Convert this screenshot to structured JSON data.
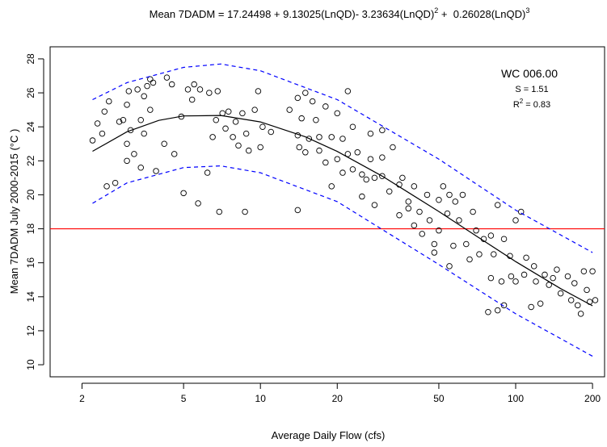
{
  "chart_data": {
    "type": "scatter",
    "title": [
      "Mean 7DADM = 17.24498 + 9.13025(LnQD)- 3.23634(LnQD)",
      "2",
      " +  0.26028(LnQD)",
      "3"
    ],
    "x_label": "Average Daily Flow (cfs)",
    "y_label": "Mean 7DADM July 2000-2015 (°C )",
    "annotations": {
      "site": "WC 006.00",
      "s": "S = 1.51",
      "r2": [
        "R",
        "2",
        " = 0.83"
      ]
    },
    "x_log": true,
    "xlim": [
      1.5,
      223
    ],
    "ylim": [
      9.29,
      28.71
    ],
    "xticks": [
      2,
      5,
      10,
      20,
      50,
      100,
      200
    ],
    "yticks": [
      10,
      12,
      14,
      16,
      18,
      20,
      22,
      24,
      26,
      28
    ],
    "hline": {
      "value": 18,
      "color": "#ff0000"
    },
    "series": [
      {
        "kind": "points",
        "color": "#000000",
        "x": [
          2.2,
          2.3,
          2.4,
          2.45,
          2.5,
          2.55,
          2.7,
          2.8,
          2.9,
          3.0,
          3.0,
          3.0,
          3.05,
          3.1,
          3.2,
          3.3,
          3.4,
          3.4,
          3.5,
          3.5,
          3.6,
          3.7,
          3.7,
          3.8,
          3.9,
          4.2,
          4.3,
          4.5,
          4.6,
          4.9,
          5.0,
          5.2,
          5.4,
          5.5,
          5.7,
          5.8,
          6.2,
          6.3,
          6.5,
          6.7,
          6.8,
          6.9,
          7.1,
          7.3,
          7.5,
          7.8,
          8.0,
          8.2,
          8.5,
          8.7,
          8.8,
          9.0,
          9.5,
          9.8,
          10.0,
          10.2,
          11.0,
          13,
          14,
          14,
          14,
          14.2,
          14.5,
          15,
          15,
          15.5,
          16,
          16.5,
          17,
          17,
          18,
          18,
          19,
          19,
          20,
          20,
          21,
          21,
          22,
          22,
          23,
          23,
          24,
          25,
          25,
          26,
          27,
          27,
          28,
          28,
          30,
          30,
          30,
          32,
          33,
          35,
          35,
          36,
          38,
          38,
          40,
          40,
          42,
          43,
          45,
          46,
          48,
          48,
          50,
          50,
          52,
          54,
          55,
          55,
          57,
          58,
          60,
          62,
          64,
          66,
          68,
          70,
          72,
          75,
          78,
          80,
          80,
          82,
          85,
          85,
          88,
          90,
          90,
          95,
          96,
          100,
          100,
          105,
          108,
          110,
          115,
          118,
          120,
          125,
          130,
          135,
          140,
          145,
          150,
          160,
          165,
          170,
          175,
          180,
          185,
          190,
          195,
          200,
          205
        ],
        "values": [
          23.2,
          24.2,
          23.6,
          24.9,
          20.5,
          25.5,
          20.7,
          24.3,
          24.4,
          22.0,
          23.0,
          25.3,
          26.1,
          23.8,
          22.4,
          26.2,
          21.6,
          24.4,
          23.6,
          25.8,
          26.4,
          26.8,
          25.0,
          26.6,
          21.4,
          23.0,
          26.9,
          26.5,
          22.4,
          24.6,
          20.1,
          26.2,
          25.6,
          26.5,
          19.5,
          26.2,
          21.3,
          26.0,
          23.4,
          24.4,
          26.1,
          19.0,
          24.8,
          23.9,
          24.9,
          23.4,
          24.3,
          22.9,
          24.8,
          19.0,
          23.6,
          22.6,
          25.0,
          26.1,
          22.8,
          24.0,
          23.7,
          25.0,
          19.1,
          25.7,
          23.5,
          22.8,
          24.5,
          26.0,
          22.5,
          23.3,
          25.5,
          24.4,
          23.4,
          22.6,
          25.2,
          21.9,
          23.4,
          20.5,
          22.1,
          24.8,
          21.3,
          23.3,
          22.4,
          26.1,
          21.5,
          24.0,
          22.5,
          19.9,
          21.2,
          20.9,
          22.1,
          23.6,
          21.0,
          19.4,
          22.2,
          21.1,
          23.8,
          20.2,
          22.8,
          18.8,
          20.6,
          21.0,
          19.6,
          19.2,
          20.5,
          18.2,
          19.0,
          17.7,
          20.0,
          18.5,
          17.1,
          16.6,
          17.9,
          19.7,
          20.5,
          18.9,
          20.0,
          15.8,
          17.0,
          19.6,
          18.5,
          20.0,
          17.1,
          16.2,
          19.0,
          17.9,
          16.5,
          17.4,
          13.1,
          15.1,
          17.6,
          16.5,
          13.2,
          19.4,
          14.9,
          17.4,
          13.5,
          16.4,
          15.2,
          18.5,
          14.9,
          19.0,
          15.3,
          16.3,
          13.4,
          15.8,
          14.9,
          13.6,
          15.3,
          14.7,
          15.1,
          15.6,
          14.2,
          15.2,
          13.8,
          14.8,
          13.5,
          13.0,
          15.5,
          14.4,
          13.7,
          15.5,
          13.8
        ]
      },
      {
        "kind": "line",
        "color": "#000000",
        "x": [
          2.2,
          3,
          4,
          5,
          7,
          10,
          15,
          20,
          30,
          50,
          70,
          100,
          150,
          200
        ],
        "values": [
          22.56,
          23.71,
          24.38,
          24.64,
          24.67,
          24.29,
          23.41,
          22.55,
          21.1,
          19.02,
          17.58,
          16.07,
          14.48,
          13.47
        ]
      },
      {
        "kind": "dashed",
        "color": "#0000ff",
        "x": [
          2.2,
          3,
          5,
          7,
          10,
          20,
          50,
          100,
          200
        ],
        "values": [
          25.6,
          26.6,
          27.5,
          27.7,
          27.3,
          25.6,
          22.1,
          19.1,
          16.6
        ]
      },
      {
        "kind": "dashed",
        "color": "#0000ff",
        "x": [
          2.2,
          3,
          5,
          7,
          10,
          20,
          50,
          100,
          200
        ],
        "values": [
          19.5,
          20.7,
          21.6,
          21.7,
          21.3,
          19.6,
          15.9,
          13.0,
          10.5
        ]
      }
    ]
  }
}
